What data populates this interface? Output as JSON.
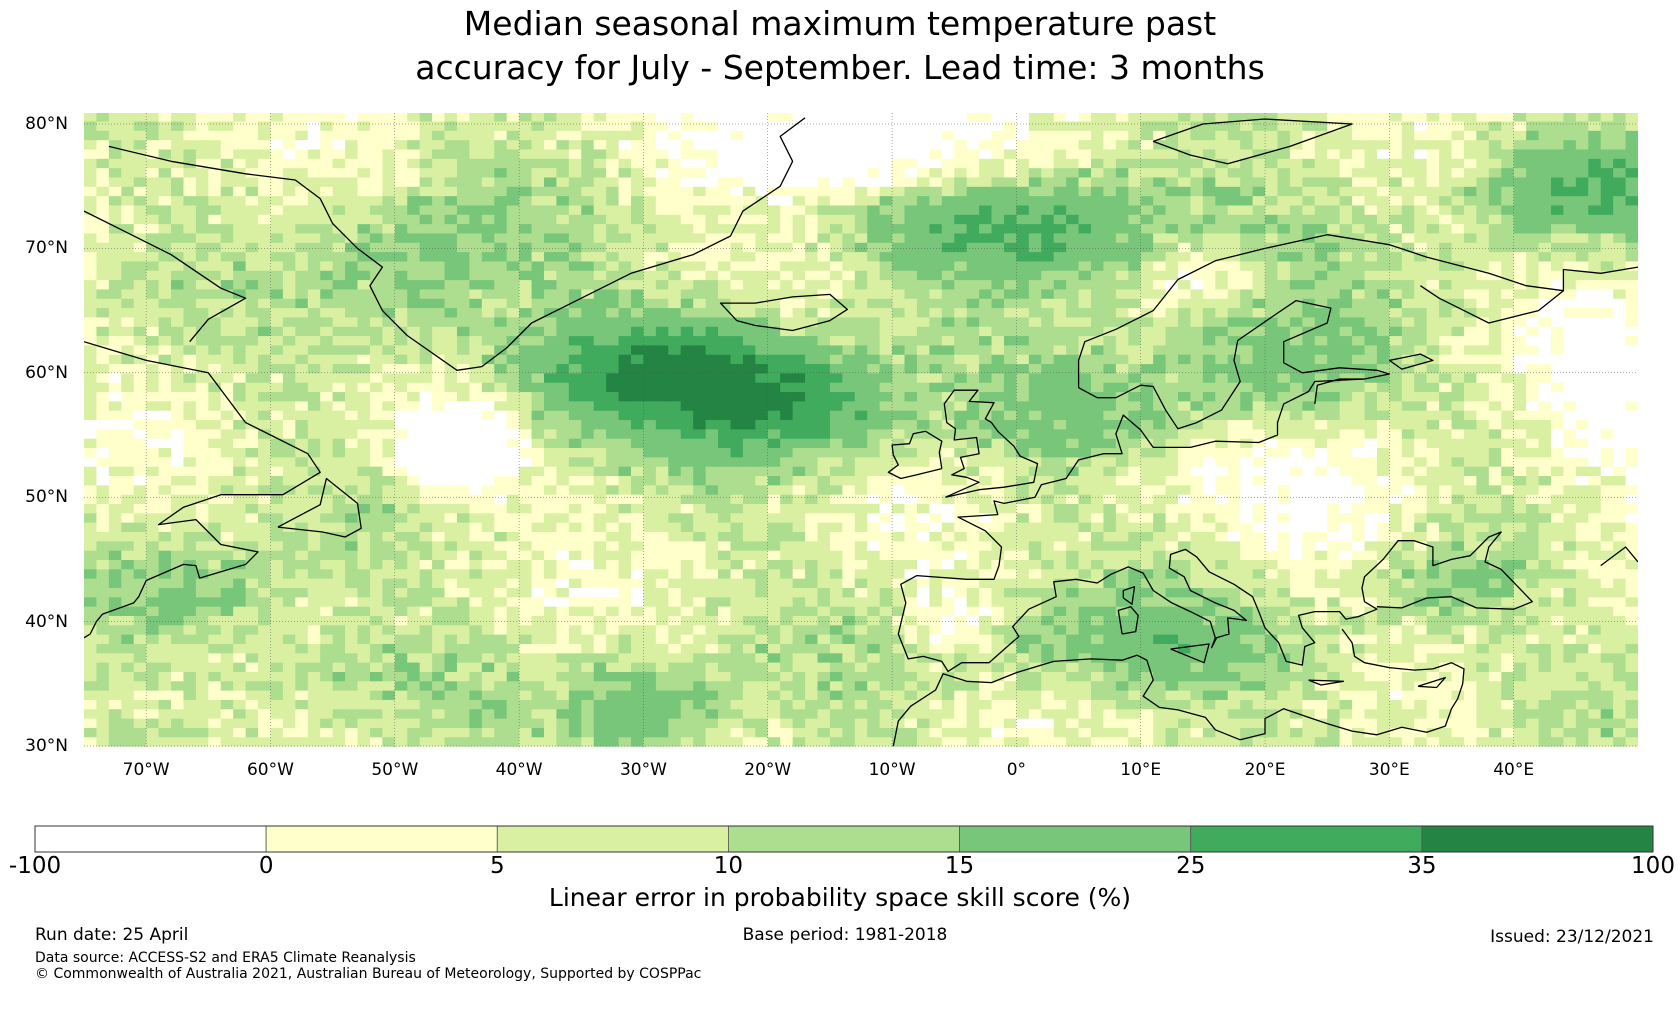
{
  "title_line1": "Median seasonal maximum temperature past",
  "title_line2": "accuracy for July - September. Lead time: 3 months",
  "map": {
    "extent": {
      "lon_min": -75,
      "lon_max": 50,
      "lat_min": 30,
      "lat_max": 81
    },
    "lat_labels": [
      {
        "value": 80,
        "text": "80°N"
      },
      {
        "value": 70,
        "text": "70°N"
      },
      {
        "value": 60,
        "text": "60°N"
      },
      {
        "value": 50,
        "text": "50°N"
      },
      {
        "value": 40,
        "text": "40°N"
      },
      {
        "value": 30,
        "text": "30°N"
      }
    ],
    "lon_labels": [
      {
        "value": -70,
        "text": "70°W"
      },
      {
        "value": -60,
        "text": "60°W"
      },
      {
        "value": -50,
        "text": "50°W"
      },
      {
        "value": -40,
        "text": "40°W"
      },
      {
        "value": -30,
        "text": "30°W"
      },
      {
        "value": -20,
        "text": "20°W"
      },
      {
        "value": -10,
        "text": "10°W"
      },
      {
        "value": 0,
        "text": "0°"
      },
      {
        "value": 10,
        "text": "10°E"
      },
      {
        "value": 20,
        "text": "20°E"
      },
      {
        "value": 30,
        "text": "30°E"
      },
      {
        "value": 40,
        "text": "40°E"
      }
    ]
  },
  "colorbar": {
    "bins": [
      {
        "from": -100,
        "to": 0,
        "color": "#ffffff"
      },
      {
        "from": 0,
        "to": 5,
        "color": "#ffffcc"
      },
      {
        "from": 5,
        "to": 10,
        "color": "#d9f0a3"
      },
      {
        "from": 10,
        "to": 15,
        "color": "#addd8e"
      },
      {
        "from": 15,
        "to": 25,
        "color": "#78c679"
      },
      {
        "from": 25,
        "to": 35,
        "color": "#41ab5d"
      },
      {
        "from": 35,
        "to": 100,
        "color": "#238443"
      }
    ],
    "ticks": [
      "-100",
      "0",
      "5",
      "10",
      "15",
      "25",
      "35",
      "100"
    ],
    "label": "Linear error in probability space skill score (%)"
  },
  "footer": {
    "run_date": "Run date: 25 April",
    "base_period": "Base period: 1981-2018",
    "issued": "Issued: 23/12/2021",
    "data_source": "Data source: ACCESS-S2 and ERA5 Climate Reanalysis",
    "copyright": "© Commonwealth of Australia 2021, Australian Bureau of Meteorology, Supported by COSPPac"
  }
}
